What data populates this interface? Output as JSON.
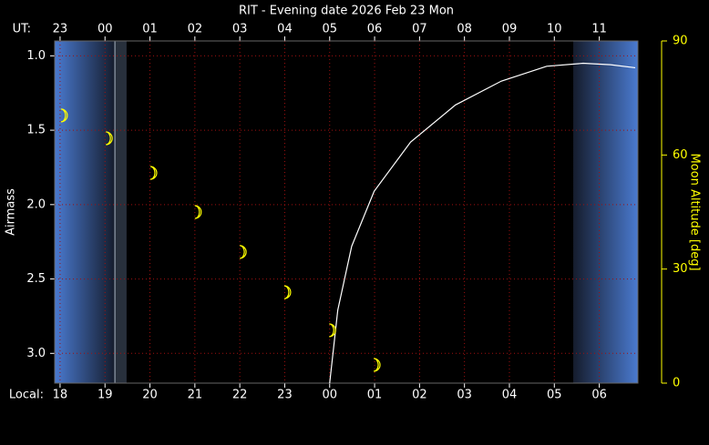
{
  "chart_data": {
    "type": "line",
    "title": "RIT - Evening date 2026 Feb 23  Mon",
    "ylabel": "Airmass",
    "y2label": "Moon Altitude [deg]",
    "xlabel": "Local:",
    "x2label": "UT:",
    "xlim": [
      17.88,
      30.86
    ],
    "ylim": [
      0.9,
      3.2
    ],
    "y_inverted": true,
    "y2lim": [
      0,
      90
    ],
    "grid": true,
    "xticks": [
      {
        "value": 18,
        "label": "18"
      },
      {
        "value": 19,
        "label": "19"
      },
      {
        "value": 20,
        "label": "20"
      },
      {
        "value": 21,
        "label": "21"
      },
      {
        "value": 22,
        "label": "22"
      },
      {
        "value": 23,
        "label": "23"
      },
      {
        "value": 24,
        "label": "00"
      },
      {
        "value": 25,
        "label": "01"
      },
      {
        "value": 26,
        "label": "02"
      },
      {
        "value": 27,
        "label": "03"
      },
      {
        "value": 28,
        "label": "04"
      },
      {
        "value": 29,
        "label": "05"
      },
      {
        "value": 30,
        "label": "06"
      }
    ],
    "x2ticks": [
      {
        "value": 18,
        "label": "23"
      },
      {
        "value": 19,
        "label": "00"
      },
      {
        "value": 20,
        "label": "01"
      },
      {
        "value": 21,
        "label": "02"
      },
      {
        "value": 22,
        "label": "03"
      },
      {
        "value": 23,
        "label": "04"
      },
      {
        "value": 24,
        "label": "05"
      },
      {
        "value": 25,
        "label": "06"
      },
      {
        "value": 26,
        "label": "07"
      },
      {
        "value": 27,
        "label": "08"
      },
      {
        "value": 28,
        "label": "09"
      },
      {
        "value": 29,
        "label": "10"
      },
      {
        "value": 30,
        "label": "11"
      }
    ],
    "yticks": [
      {
        "value": 1.0,
        "label": "1.0"
      },
      {
        "value": 1.5,
        "label": "1.5"
      },
      {
        "value": 2.0,
        "label": "2.0"
      },
      {
        "value": 2.5,
        "label": "2.5"
      },
      {
        "value": 3.0,
        "label": "3.0"
      }
    ],
    "y2ticks": [
      0,
      30,
      60,
      90
    ],
    "twilight": {
      "sunset": 19.22,
      "evening_end": 19.48,
      "morning_start": 29.42
    },
    "series": [
      {
        "color": "#ffffff",
        "x": [
          24.0,
          24.18,
          24.49,
          24.99,
          25.8,
          26.8,
          27.82,
          28.83,
          29.64,
          30.25,
          30.8
        ],
        "values": [
          3.2,
          2.71,
          2.28,
          1.91,
          1.58,
          1.33,
          1.17,
          1.07,
          1.05,
          1.06,
          1.08
        ]
      },
      {
        "color": "#ffff00",
        "axis": "y2",
        "marker": "moon",
        "x": [
          18.08,
          19.08,
          20.07,
          21.06,
          22.06,
          23.05,
          24.05,
          25.04
        ],
        "values": [
          70.4,
          64.4,
          55.3,
          45,
          34.5,
          23.9,
          13.9,
          4.8
        ]
      }
    ]
  }
}
